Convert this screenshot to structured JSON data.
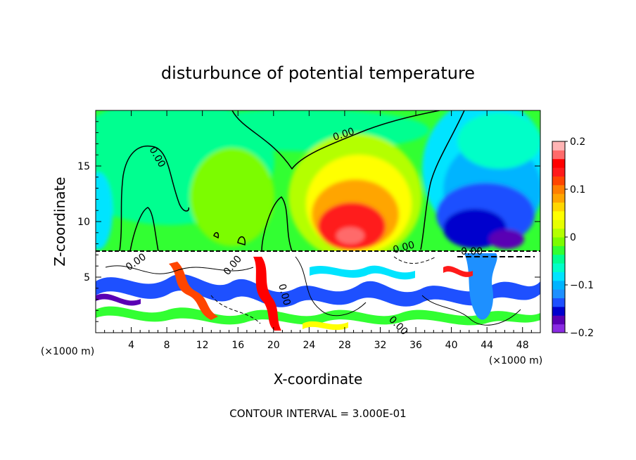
{
  "chart_data": {
    "type": "heatmap",
    "title": "disturbunce of potential temperature",
    "xlabel": "X-coordinate",
    "ylabel": "Z-coordinate",
    "x_unit": "(×1000 m)",
    "xlim": [
      0,
      50
    ],
    "ylim": [
      0,
      20
    ],
    "x_ticks": [
      "4",
      "8",
      "12",
      "16",
      "20",
      "24",
      "28",
      "32",
      "36",
      "40",
      "44",
      "48"
    ],
    "x_tick_values": [
      4,
      8,
      12,
      16,
      20,
      24,
      28,
      32,
      36,
      40,
      44,
      48
    ],
    "y_ticks": [
      "5",
      "10",
      "15"
    ],
    "y_tick_values": [
      5,
      10,
      15
    ],
    "colorbar": {
      "min": -0.2,
      "max": 0.2,
      "ticks": [
        "0.2",
        "0.1",
        "0",
        "−0.1",
        "−0.2"
      ],
      "tick_values": [
        0.2,
        0.1,
        0,
        -0.1,
        -0.2
      ],
      "colors": [
        "#8a2be2",
        "#5a00b4",
        "#0000cd",
        "#1e50ff",
        "#1e90ff",
        "#00b4ff",
        "#00e4ff",
        "#00ffc8",
        "#00ff90",
        "#32ff32",
        "#7cfc00",
        "#b4ff00",
        "#e6ff00",
        "#ffff00",
        "#ffd700",
        "#ffa500",
        "#ff7f00",
        "#ff4500",
        "#ff1a1a",
        "#ff0000",
        "#ff6a6a",
        "#ffb4b4"
      ]
    },
    "contour_label": "0.00",
    "contour_interval_text": "CONTOUR INTERVAL = 3.000E-01",
    "field_features": [
      {
        "x": 29,
        "z": 11,
        "value": 0.16
      },
      {
        "x": 31,
        "z": 13,
        "value": 0.08
      },
      {
        "x": 44,
        "z": 10.5,
        "value": -0.17
      },
      {
        "x": 48,
        "z": 15,
        "value": -0.1
      },
      {
        "x": 0.5,
        "z": 11,
        "value": -0.05
      },
      {
        "x": 14,
        "z": 14,
        "value": 0.02
      }
    ]
  }
}
